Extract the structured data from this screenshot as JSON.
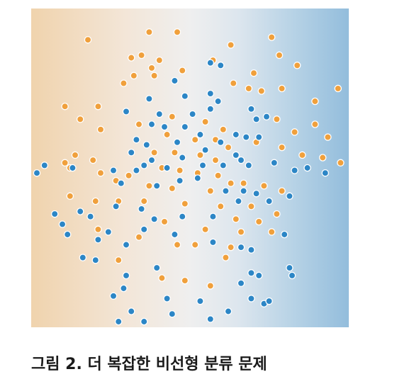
{
  "caption": "그림 2. 더 복잡한 비선형 분류 문제",
  "colors": {
    "orange_class": "#f0a03c",
    "blue_class": "#2c86c6",
    "point_stroke": "#ffffff",
    "background_left": "#f0d3ad",
    "background_center": "#efefef",
    "background_right": "#93bddc"
  },
  "chart_data": {
    "type": "scatter",
    "title": "",
    "xlabel": "",
    "ylabel": "",
    "grid": false,
    "xlim": [
      -6,
      6
    ],
    "ylim": [
      -6,
      6
    ],
    "series": [
      {
        "color": "#f0a03c",
        "points": [
          [
            -4.0,
            5.0
          ],
          [
            -1.6,
            5.3
          ],
          [
            -0.5,
            5.3
          ],
          [
            3.2,
            5.1
          ],
          [
            1.6,
            4.8
          ],
          [
            3.5,
            4.4
          ],
          [
            4.2,
            4.0
          ],
          [
            -2.3,
            4.3
          ],
          [
            -1.9,
            4.4
          ],
          [
            -1.2,
            4.2
          ],
          [
            -1.5,
            3.9
          ],
          [
            -2.2,
            3.6
          ],
          [
            -1.4,
            3.6
          ],
          [
            -2.6,
            3.3
          ],
          [
            -0.3,
            3.8
          ],
          [
            0.9,
            4.2
          ],
          [
            2.5,
            3.7
          ],
          [
            1.7,
            3.3
          ],
          [
            2.3,
            3.1
          ],
          [
            2.8,
            3.0
          ],
          [
            3.6,
            3.1
          ],
          [
            4.9,
            2.6
          ],
          [
            5.8,
            3.1
          ],
          [
            -4.9,
            2.4
          ],
          [
            -3.6,
            2.4
          ],
          [
            -4.3,
            1.9
          ],
          [
            -3.5,
            1.5
          ],
          [
            -2.0,
            1.7
          ],
          [
            -4.5,
            0.5
          ],
          [
            -3.8,
            0.3
          ],
          [
            -3.5,
            -0.2
          ],
          [
            -4.9,
            0.2
          ],
          [
            3.4,
            1.9
          ],
          [
            4.1,
            1.4
          ],
          [
            4.9,
            1.7
          ],
          [
            5.4,
            1.2
          ],
          [
            2.6,
            1.0
          ],
          [
            3.6,
            0.8
          ],
          [
            4.4,
            0.5
          ],
          [
            5.2,
            0.4
          ],
          [
            5.9,
            0.2
          ],
          [
            -0.7,
            2.0
          ],
          [
            0.6,
            1.8
          ],
          [
            1.3,
            1.5
          ],
          [
            -0.9,
            1.3
          ],
          [
            0.2,
            1.1
          ],
          [
            1.0,
            1.1
          ],
          [
            1.5,
            0.8
          ],
          [
            -1.4,
            0.6
          ],
          [
            -0.6,
            0.6
          ],
          [
            0.4,
            0.5
          ],
          [
            1.0,
            0.3
          ],
          [
            -1.1,
            0.0
          ],
          [
            -0.4,
            -0.1
          ],
          [
            0.3,
            -0.2
          ],
          [
            1.1,
            -0.3
          ],
          [
            -2.4,
            -0.3
          ],
          [
            -2.9,
            -0.5
          ],
          [
            -1.6,
            -0.7
          ],
          [
            -0.7,
            -0.8
          ],
          [
            0.8,
            -0.9
          ],
          [
            1.6,
            -0.6
          ],
          [
            2.1,
            -0.6
          ],
          [
            2.9,
            -0.7
          ],
          [
            3.6,
            -0.9
          ],
          [
            -4.7,
            0.0
          ],
          [
            -1.8,
            -1.3
          ],
          [
            -0.2,
            -1.4
          ],
          [
            1.2,
            -1.5
          ],
          [
            2.4,
            -1.5
          ],
          [
            3.4,
            -1.8
          ],
          [
            -4.7,
            -1.1
          ],
          [
            -3.7,
            -1.3
          ],
          [
            -2.8,
            -1.3
          ],
          [
            -3.6,
            -2.4
          ],
          [
            -2.0,
            -2.7
          ],
          [
            -1.0,
            -2.1
          ],
          [
            0.6,
            -2.4
          ],
          [
            1.6,
            -3.1
          ],
          [
            2.0,
            -2.5
          ],
          [
            2.7,
            -2.1
          ],
          [
            3.2,
            -2.5
          ],
          [
            -2.8,
            -3.6
          ],
          [
            -1.1,
            -4.3
          ],
          [
            -0.2,
            -4.4
          ],
          [
            0.8,
            -4.6
          ],
          [
            1.4,
            -3.5
          ],
          [
            -0.5,
            -3.0
          ],
          [
            0.2,
            -3.0
          ],
          [
            1.8,
            -2.0
          ]
        ]
      },
      {
        "color": "#2c86c6",
        "points": [
          [
            0.8,
            4.1
          ],
          [
            1.2,
            4.0
          ],
          [
            -0.6,
            3.4
          ],
          [
            -1.6,
            2.7
          ],
          [
            -0.2,
            2.8
          ],
          [
            0.8,
            2.9
          ],
          [
            1.1,
            2.6
          ],
          [
            -2.5,
            2.2
          ],
          [
            -1.2,
            2.1
          ],
          [
            0.1,
            2.1
          ],
          [
            0.8,
            2.3
          ],
          [
            2.4,
            2.3
          ],
          [
            2.6,
            1.9
          ],
          [
            3.0,
            2.0
          ],
          [
            -1.5,
            1.7
          ],
          [
            -1.0,
            1.6
          ],
          [
            -0.2,
            1.6
          ],
          [
            0.4,
            1.3
          ],
          [
            -2.1,
            1.1
          ],
          [
            -1.7,
            0.9
          ],
          [
            -0.5,
            1.0
          ],
          [
            1.2,
            1.0
          ],
          [
            1.8,
            1.3
          ],
          [
            2.2,
            1.2
          ],
          [
            2.7,
            1.2
          ],
          [
            -2.3,
            0.6
          ],
          [
            -1.5,
            0.3
          ],
          [
            -0.3,
            0.4
          ],
          [
            0.6,
            0.7
          ],
          [
            1.8,
            0.5
          ],
          [
            2.0,
            0.3
          ],
          [
            3.3,
            0.2
          ],
          [
            4.1,
            -0.1
          ],
          [
            4.6,
            0.0
          ],
          [
            5.3,
            -0.2
          ],
          [
            -5.7,
            0.1
          ],
          [
            -6.0,
            -0.2
          ],
          [
            -4.6,
            0.0
          ],
          [
            -3.0,
            -0.1
          ],
          [
            -2.1,
            -0.1
          ],
          [
            -1.8,
            0.1
          ],
          [
            -0.9,
            0.0
          ],
          [
            0.5,
            0.1
          ],
          [
            1.3,
            0.1
          ],
          [
            2.3,
            0.1
          ],
          [
            -2.7,
            -0.6
          ],
          [
            -1.3,
            -0.7
          ],
          [
            -0.4,
            -0.5
          ],
          [
            0.3,
            -0.4
          ],
          [
            1.4,
            -0.9
          ],
          [
            2.1,
            -0.9
          ],
          [
            3.1,
            -1.3
          ],
          [
            3.9,
            -1.1
          ],
          [
            -4.3,
            -1.7
          ],
          [
            -3.9,
            -1.9
          ],
          [
            -2.9,
            -1.5
          ],
          [
            -1.9,
            -1.6
          ],
          [
            -1.4,
            -2.0
          ],
          [
            -0.3,
            -1.9
          ],
          [
            0.9,
            -1.9
          ],
          [
            1.9,
            -1.3
          ],
          [
            2.6,
            -1.0
          ],
          [
            -5.3,
            -1.8
          ],
          [
            -5.0,
            -2.2
          ],
          [
            -4.8,
            -2.6
          ],
          [
            -3.6,
            -2.8
          ],
          [
            -3.2,
            -2.5
          ],
          [
            -2.5,
            -3.0
          ],
          [
            -1.8,
            -2.4
          ],
          [
            -0.6,
            -2.6
          ],
          [
            0.9,
            -2.9
          ],
          [
            2.0,
            -3.1
          ],
          [
            2.4,
            -3.2
          ],
          [
            3.7,
            -2.6
          ],
          [
            -4.2,
            -3.5
          ],
          [
            -3.7,
            -3.6
          ],
          [
            -2.5,
            -4.2
          ],
          [
            -1.3,
            -3.9
          ],
          [
            2.4,
            -4.1
          ],
          [
            2.7,
            -4.2
          ],
          [
            3.9,
            -3.9
          ],
          [
            4.0,
            -4.2
          ],
          [
            2.0,
            -4.5
          ],
          [
            2.4,
            -5.1
          ],
          [
            2.9,
            -5.3
          ],
          [
            3.1,
            -5.2
          ],
          [
            -3.0,
            -5.0
          ],
          [
            -2.3,
            -5.6
          ],
          [
            -1.8,
            -6.0
          ],
          [
            -2.8,
            -6.0
          ],
          [
            -0.7,
            -5.7
          ],
          [
            0.8,
            -5.9
          ],
          [
            1.5,
            -5.6
          ],
          [
            -0.9,
            -5.1
          ],
          [
            -2.6,
            -4.7
          ],
          [
            0.4,
            -5.2
          ]
        ]
      }
    ]
  }
}
